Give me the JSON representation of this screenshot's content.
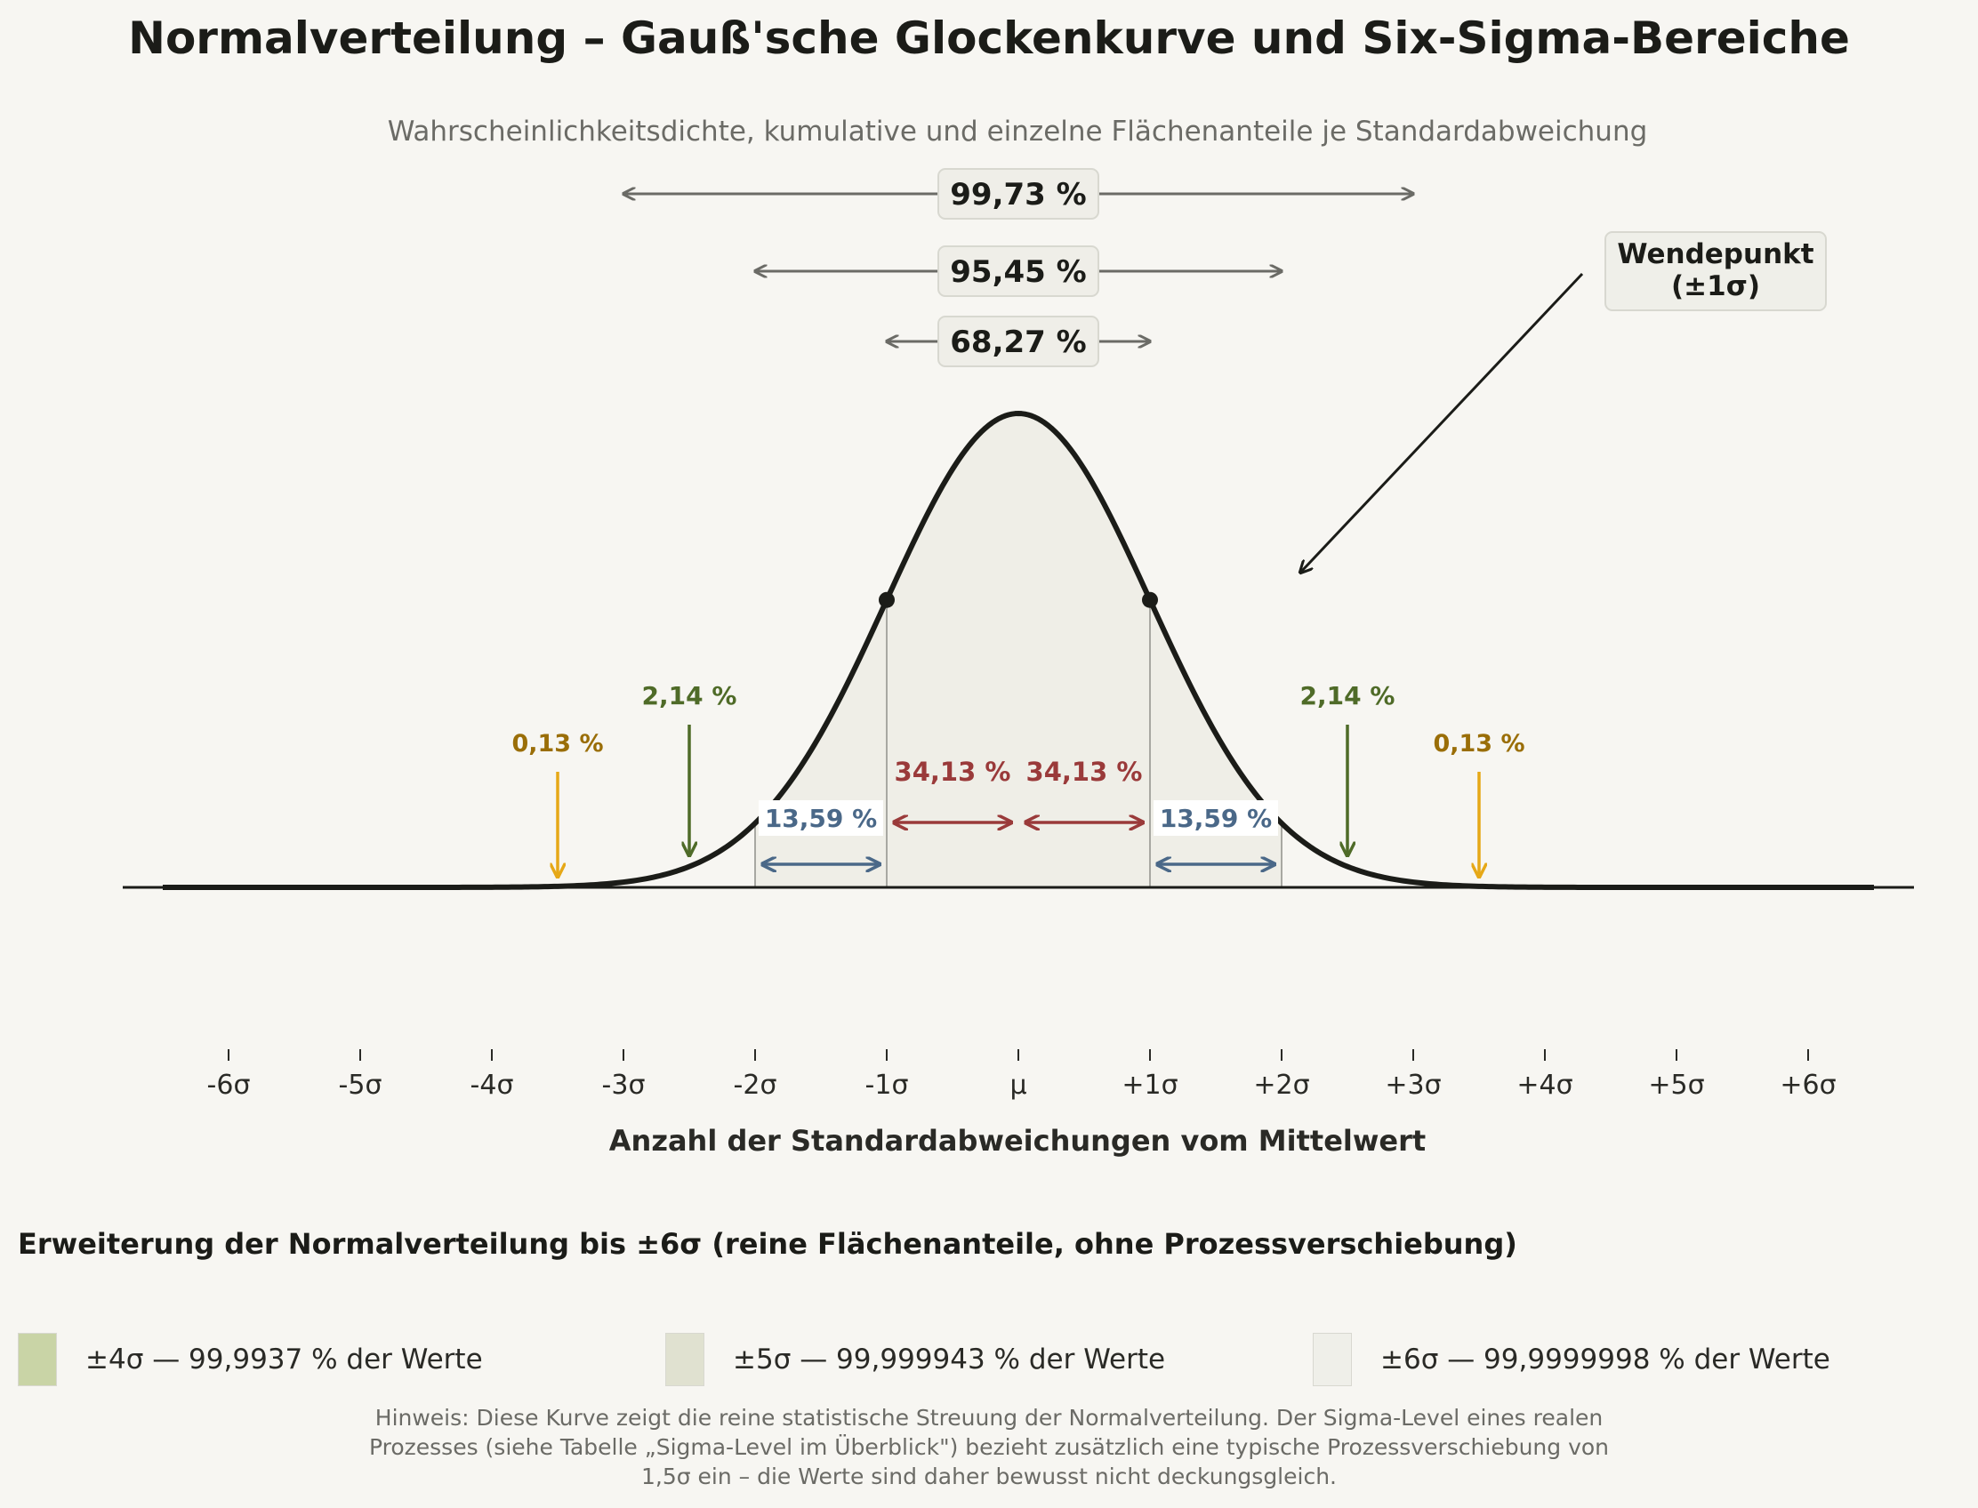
{
  "chart_data": {
    "type": "area",
    "title": "Normalverteilung – Gauß'sche Glockenkurve und Six-Sigma-Bereiche",
    "subtitle": "Wahrscheinlichkeitsdichte, kumulative und einzelne Flächenanteile je Standardabweichung",
    "xlabel": "Anzahl der Standardabweichungen vom Mittelwert",
    "ylabel": "",
    "xlim": [
      -6.5,
      6.5
    ],
    "x_ticks": [
      {
        "value": -6,
        "label": "-6σ"
      },
      {
        "value": -5,
        "label": "-5σ"
      },
      {
        "value": -4,
        "label": "-4σ"
      },
      {
        "value": -3,
        "label": "-3σ"
      },
      {
        "value": -2,
        "label": "-2σ"
      },
      {
        "value": -1,
        "label": "-1σ"
      },
      {
        "value": 0,
        "label": "μ"
      },
      {
        "value": 1,
        "label": "+1σ"
      },
      {
        "value": 2,
        "label": "+2σ"
      },
      {
        "value": 3,
        "label": "+3σ"
      },
      {
        "value": 4,
        "label": "+4σ"
      },
      {
        "value": 5,
        "label": "+5σ"
      },
      {
        "value": 6,
        "label": "+6σ"
      }
    ],
    "curve": {
      "function": "standard normal density",
      "mean": 0,
      "sd": 1
    },
    "inflection_points": [
      -1,
      1
    ],
    "cumulative_ranges": [
      {
        "sigma": 3,
        "label": "99,73 %"
      },
      {
        "sigma": 2,
        "label": "95,45 %"
      },
      {
        "sigma": 1,
        "label": "68,27 %"
      }
    ],
    "segments": [
      {
        "from": 0,
        "to": 1,
        "label": "34,13 %",
        "color": "#9a3a3a"
      },
      {
        "from": -1,
        "to": 0,
        "label": "34,13 %",
        "color": "#9a3a3a"
      },
      {
        "from": -2,
        "to": -1,
        "label": "13,59 %",
        "color": "#4a6888"
      },
      {
        "from": 1,
        "to": 2,
        "label": "13,59 %",
        "color": "#4a6888"
      },
      {
        "from": -3,
        "to": -2,
        "label": "2,14 %",
        "color": "#4f6b28"
      },
      {
        "from": 2,
        "to": 3,
        "label": "2,14 %",
        "color": "#4f6b28"
      },
      {
        "from": -4,
        "to": -3,
        "label": "0,13 %",
        "color": "#e6a817"
      },
      {
        "from": 3,
        "to": 4,
        "label": "0,13 %",
        "color": "#e6a817"
      }
    ],
    "annotation": {
      "line1": "Wendepunkt",
      "line2": "(±1σ)"
    }
  },
  "extension": {
    "title": "Erweiterung der Normalverteilung bis ±6σ (reine Flächenanteile, ohne Prozessverschiebung)",
    "items": [
      {
        "label": "±4σ — 99,9937 % der Werte",
        "color": "#c9d4a6"
      },
      {
        "label": "±5σ — 99,999943 % der Werte",
        "color": "#e0e1d0"
      },
      {
        "label": "±6σ — 99,9999998 % der Werte",
        "color": "#efefe9"
      }
    ]
  },
  "note": {
    "text": "Hinweis: Diese Kurve zeigt die reine statistische Streuung der Normalverteilung. Der Sigma-Level eines realen Prozesses (siehe Tabelle „Sigma-Level im Überblick\") bezieht zusätzlich eine typische Prozessverschiebung von 1,5σ ein – die Werte sind daher bewusst nicht deckungsgleich."
  },
  "colors": {
    "curve": "#1b1c18",
    "fill": "#efeee7",
    "range_arrow": "#6b6b66",
    "annotation_box": "#efefe9"
  }
}
